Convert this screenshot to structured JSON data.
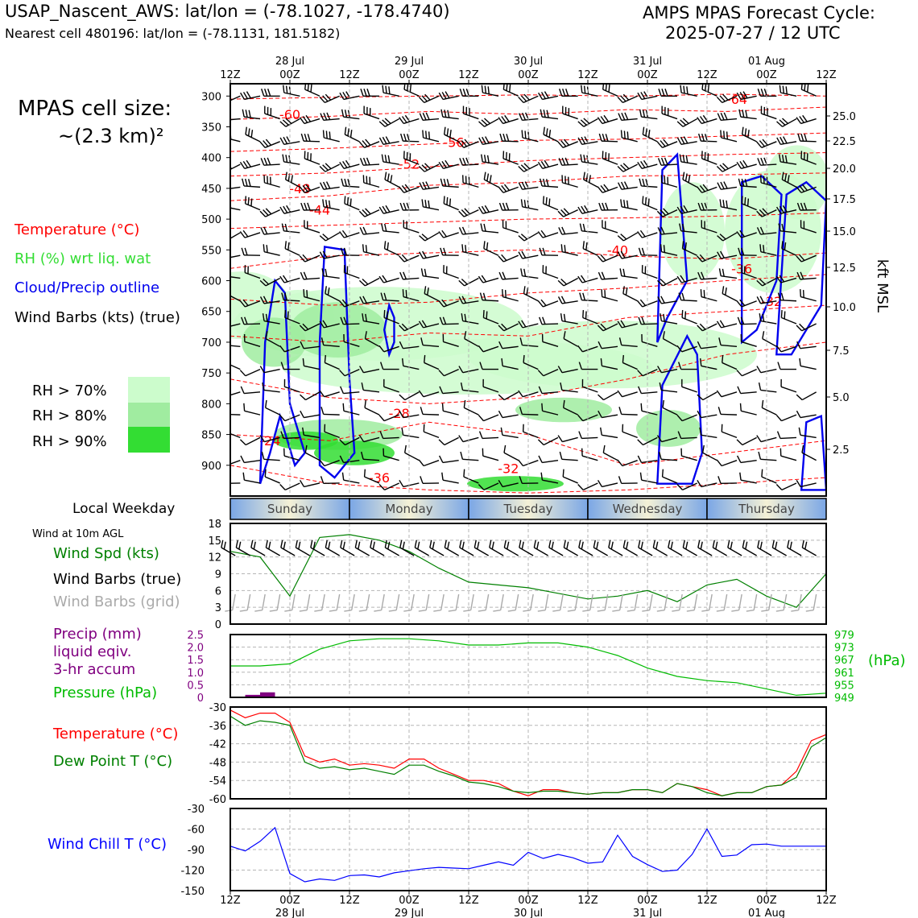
{
  "header": {
    "station_line": "USAP_Nascent_AWS: lat/lon = (-78.1027, -178.4740)",
    "cell_line": "Nearest cell 480196: lat/lon = (-78.1131, 181.5182)",
    "cycle_line_1": "AMPS MPAS Forecast Cycle:",
    "cycle_line_2": "2025-07-27 / 12 UTC",
    "cell_size_label": "MPAS cell size:",
    "cell_size_value": "~(2.3 km)²"
  },
  "legend": {
    "temperature": "Temperature (°C)",
    "rh": "RH (%) wrt liq. wat",
    "cloud": "Cloud/Precip outline",
    "barbs": "Wind Barbs (kts) (true)",
    "rh70": "RH > 70%",
    "rh80": "RH > 80%",
    "rh90": "RH > 90%",
    "weekday_label": "Local Weekday",
    "wind10m_label": "Wind at 10m AGL",
    "wind_spd": "Wind Spd (kts)",
    "wind_barbs_true": "Wind Barbs (true)",
    "wind_barbs_grid": "Wind Barbs (grid)",
    "precip_1": "Precip (mm)",
    "precip_2": "liquid eqiv.",
    "precip_3": "3-hr accum",
    "pressure": "Pressure (hPa)",
    "pressure_unit": "(hPa)",
    "temp2": "Temperature (°C)",
    "dewpoint": "Dew Point T (°C)",
    "windchill": "Wind Chill T (°C)"
  },
  "colors": {
    "rh70": "#ccfccc",
    "rh80": "#a0eca0",
    "rh90": "#33dd33",
    "cloud": "#0000ee",
    "temperature": "#ff0000",
    "wind": "#008000",
    "precip": "#800080",
    "pressure": "#00bb00",
    "windchill": "#0000ff",
    "grid_barbs": "#aaaaaa"
  },
  "chart_data": [
    {
      "type": "time-height",
      "name": "profile",
      "x_ticks_top": [
        {
          "day": "",
          "hour": "12Z"
        },
        {
          "day": "28 Jul",
          "hour": "00Z"
        },
        {
          "day": "",
          "hour": "12Z"
        },
        {
          "day": "29 Jul",
          "hour": "00Z"
        },
        {
          "day": "",
          "hour": "12Z"
        },
        {
          "day": "30 Jul",
          "hour": "00Z"
        },
        {
          "day": "",
          "hour": "12Z"
        },
        {
          "day": "31 Jul",
          "hour": "00Z"
        },
        {
          "day": "",
          "hour": "12Z"
        },
        {
          "day": "01 Aug",
          "hour": "00Z"
        },
        {
          "day": "",
          "hour": "12Z"
        }
      ],
      "y_pressure_ticks": [
        300,
        350,
        400,
        450,
        500,
        550,
        600,
        650,
        700,
        750,
        800,
        850,
        900
      ],
      "y_kft_ticks": [
        25.0,
        22.5,
        20.0,
        17.5,
        15.0,
        12.5,
        10.0,
        7.5,
        5.0,
        2.5
      ],
      "y_kft_label": "kft MSL",
      "temperature_contour_labels": [
        "-64",
        "-60",
        "-56",
        "-52",
        "-48",
        "-44",
        "-40",
        "-36",
        "-32",
        "-28",
        "-24"
      ],
      "weekdays": [
        "Sunday",
        "Monday",
        "Tuesday",
        "Wednesday",
        "Thursday"
      ]
    },
    {
      "type": "line",
      "name": "wind_10m",
      "ylim": [
        0,
        18
      ],
      "yticks": [
        0,
        3,
        6,
        9,
        12,
        15,
        18
      ],
      "x_hours": [
        0,
        6,
        12,
        18,
        24,
        30,
        36,
        42,
        48,
        54,
        60,
        66,
        72,
        78,
        84,
        90,
        96,
        102,
        108,
        114,
        120
      ],
      "wind_speed": [
        13,
        12,
        5,
        15.5,
        16,
        15,
        13,
        10,
        7.5,
        7,
        6.5,
        5.5,
        4.5,
        5,
        6,
        4,
        7,
        8,
        5,
        3,
        9
      ]
    },
    {
      "type": "bar+line",
      "name": "precip_pressure",
      "precip_ylim": [
        0,
        2.5
      ],
      "precip_yticks": [
        "0",
        "0.5",
        "1.0",
        "1.5",
        "2.0",
        "2.5"
      ],
      "precip_x_hours": [
        3,
        6
      ],
      "precip_values": [
        0.1,
        0.2
      ],
      "pressure_ylim": [
        949,
        979
      ],
      "pressure_yticks": [
        979,
        973,
        967,
        961,
        955,
        949
      ],
      "x_hours": [
        0,
        6,
        12,
        18,
        24,
        30,
        36,
        42,
        48,
        54,
        60,
        66,
        72,
        78,
        84,
        90,
        96,
        102,
        108,
        114,
        120
      ],
      "pressure_values": [
        964,
        964,
        965,
        972,
        976,
        977,
        977,
        976,
        974,
        974,
        975,
        975,
        973,
        969,
        963,
        959,
        957,
        956,
        953,
        950,
        951
      ]
    },
    {
      "type": "line",
      "name": "temperature_dewpoint",
      "ylim": [
        -60,
        -30
      ],
      "yticks": [
        -30,
        -36,
        -42,
        -48,
        -54,
        -60
      ],
      "x_hours": [
        0,
        3,
        6,
        9,
        12,
        15,
        18,
        21,
        24,
        27,
        30,
        33,
        36,
        39,
        42,
        45,
        48,
        51,
        54,
        57,
        60,
        63,
        66,
        69,
        72,
        75,
        78,
        81,
        84,
        87,
        90,
        93,
        96,
        99,
        102,
        105,
        108,
        111,
        114,
        117,
        120
      ],
      "temperature": [
        -31,
        -33.5,
        -32,
        -32,
        -35,
        -46,
        -48,
        -47,
        -49,
        -48.5,
        -49,
        -50,
        -47,
        -47,
        -50,
        -52,
        -54,
        -54,
        -55,
        -57.5,
        -59,
        -57,
        -57,
        -58,
        -58.5,
        -58,
        -58,
        -57,
        -57,
        -58,
        -55,
        -56,
        -57,
        -59,
        -58,
        -58,
        -56,
        -55.5,
        -51,
        -41,
        -39
      ],
      "dewpoint": [
        -33,
        -36,
        -34.5,
        -35,
        -36,
        -48,
        -50,
        -49.5,
        -50.5,
        -50,
        -51,
        -52,
        -49,
        -49,
        -51,
        -52.5,
        -54.5,
        -55,
        -56,
        -57.5,
        -58,
        -57.5,
        -57.5,
        -58,
        -58.5,
        -58,
        -58,
        -57,
        -57,
        -58,
        -55,
        -56,
        -58,
        -59,
        -58,
        -58,
        -56,
        -55.5,
        -53,
        -43,
        -40
      ]
    },
    {
      "type": "line",
      "name": "wind_chill",
      "ylim": [
        -150,
        -30
      ],
      "yticks": [
        -30,
        -60,
        -90,
        -120,
        -150
      ],
      "x_hours": [
        0,
        3,
        6,
        9,
        12,
        15,
        18,
        21,
        24,
        27,
        30,
        33,
        36,
        39,
        42,
        45,
        48,
        51,
        54,
        57,
        60,
        63,
        66,
        69,
        72,
        75,
        78,
        81,
        84,
        87,
        90,
        93,
        96,
        99,
        102,
        105,
        108,
        111,
        114,
        117,
        120
      ],
      "wind_chill": [
        -85,
        -92,
        -78,
        -58,
        -125,
        -137,
        -133,
        -135,
        -128,
        -127,
        -130,
        -124,
        -121,
        -118,
        -116,
        -117,
        -118,
        -113,
        -108,
        -113,
        -94,
        -103,
        -97,
        -102,
        -110,
        -108,
        -69,
        -100,
        -112,
        -122,
        -120,
        -97,
        -60,
        -100,
        -98,
        -83,
        -82,
        -85,
        -85,
        -85,
        -85
      ]
    }
  ],
  "x_bottom_ticks": [
    {
      "hour": "12Z",
      "day": ""
    },
    {
      "hour": "00Z",
      "day": "28 Jul"
    },
    {
      "hour": "12Z",
      "day": ""
    },
    {
      "hour": "00Z",
      "day": "29 Jul"
    },
    {
      "hour": "12Z",
      "day": ""
    },
    {
      "hour": "00Z",
      "day": "30 Jul"
    },
    {
      "hour": "12Z",
      "day": ""
    },
    {
      "hour": "00Z",
      "day": "31 Jul"
    },
    {
      "hour": "12Z",
      "day": ""
    },
    {
      "hour": "00Z",
      "day": "01 Aug"
    },
    {
      "hour": "12Z",
      "day": ""
    }
  ]
}
